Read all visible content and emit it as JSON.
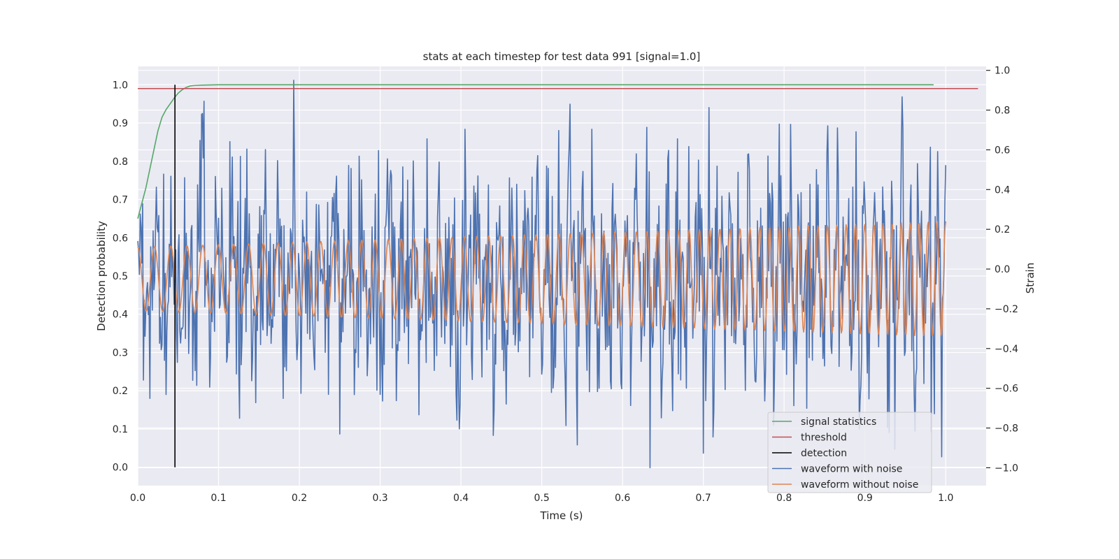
{
  "chart_data": {
    "type": "line",
    "title": "stats at each timestep for test data 991 [signal=1.0]",
    "xlabel": "Time (s)",
    "ylabel_left": "Detection probability",
    "ylabel_right": "Strain",
    "xlim": [
      0.0,
      1.05
    ],
    "ylim_left": [
      -0.048,
      1.048
    ],
    "ylim_right": [
      -1.09,
      1.02
    ],
    "xticks": [
      0.0,
      0.1,
      0.2,
      0.3,
      0.4,
      0.5,
      0.6,
      0.7,
      0.8,
      0.9,
      1.0
    ],
    "xtick_labels": [
      "0.0",
      "0.1",
      "0.2",
      "0.3",
      "0.4",
      "0.5",
      "0.6",
      "0.7",
      "0.8",
      "0.9",
      "1.0"
    ],
    "yticks_left": [
      0.0,
      0.1,
      0.2,
      0.3,
      0.4,
      0.5,
      0.6,
      0.7,
      0.8,
      0.9,
      1.0
    ],
    "ytick_labels_left": [
      "0.0",
      "0.1",
      "0.2",
      "0.3",
      "0.4",
      "0.5",
      "0.6",
      "0.7",
      "0.8",
      "0.9",
      "1.0"
    ],
    "yticks_right": [
      -1.0,
      -0.8,
      -0.6,
      -0.4,
      -0.2,
      0.0,
      0.2,
      0.4,
      0.6,
      0.8,
      1.0
    ],
    "ytick_labels_right": [
      "−1.0",
      "−0.8",
      "−0.6",
      "−0.4",
      "−0.2",
      "0.0",
      "0.2",
      "0.4",
      "0.6",
      "0.8",
      "1.0"
    ],
    "grid": true,
    "background": "#EAEAF2",
    "legend_position": "lower-right",
    "series": [
      {
        "name": "signal statistics",
        "axis": "left",
        "color": "#55A868",
        "x": [
          0.0,
          0.005,
          0.01,
          0.015,
          0.02,
          0.025,
          0.03,
          0.035,
          0.04,
          0.045,
          0.05,
          0.055,
          0.06,
          0.065,
          0.07,
          0.08,
          0.09,
          0.1,
          0.2,
          0.4,
          0.6,
          0.8,
          0.985
        ],
        "y": [
          0.65,
          0.69,
          0.73,
          0.78,
          0.83,
          0.88,
          0.915,
          0.935,
          0.95,
          0.965,
          0.978,
          0.987,
          0.993,
          0.997,
          0.998,
          0.999,
          0.9995,
          1.0,
          1.0,
          1.0,
          1.0,
          1.0,
          1.0
        ]
      },
      {
        "name": "threshold",
        "axis": "left",
        "color": "#C44E52",
        "x": [
          0.0,
          1.04
        ],
        "y": [
          0.99,
          0.99
        ]
      },
      {
        "name": "detection",
        "axis": "left",
        "color": "#000000",
        "x": [
          0.046,
          0.046
        ],
        "y": [
          0.0,
          1.0
        ]
      },
      {
        "name": "waveform with noise",
        "axis": "right",
        "color": "#4C72B0",
        "generated": "noisy-waveform",
        "x_range": [
          0.0,
          1.0
        ],
        "peaks": [
          {
            "x": 0.193,
            "y": 0.95
          },
          {
            "x": 0.535,
            "y": 0.83
          },
          {
            "x": 0.634,
            "y": -1.0
          },
          {
            "x": 0.25,
            "y": -0.83
          },
          {
            "x": 0.982,
            "y": -0.82
          }
        ]
      },
      {
        "name": "waveform without noise",
        "axis": "right",
        "color": "#DD8452",
        "generated": "chirp",
        "x_range": [
          0.0,
          1.0
        ],
        "amplitude_start": 0.16,
        "amplitude_end": 0.29
      }
    ]
  }
}
